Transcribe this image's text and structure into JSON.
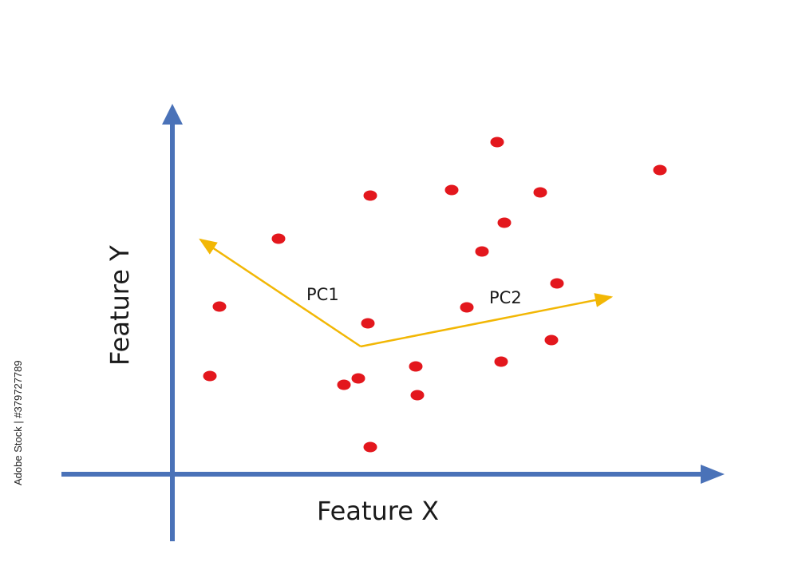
{
  "diagram": {
    "x_axis_label": "Feature X",
    "y_axis_label": "Feature Y",
    "vectors": [
      {
        "label": "PC1"
      },
      {
        "label": "PC2"
      }
    ],
    "point_count": 22
  },
  "colors": {
    "axis": "#4a72b8",
    "points": "#e3171d",
    "vectors": "#f2b705",
    "text": "#1a1a1a"
  },
  "watermark": {
    "side_text": "Adobe Stock | #379727789"
  }
}
